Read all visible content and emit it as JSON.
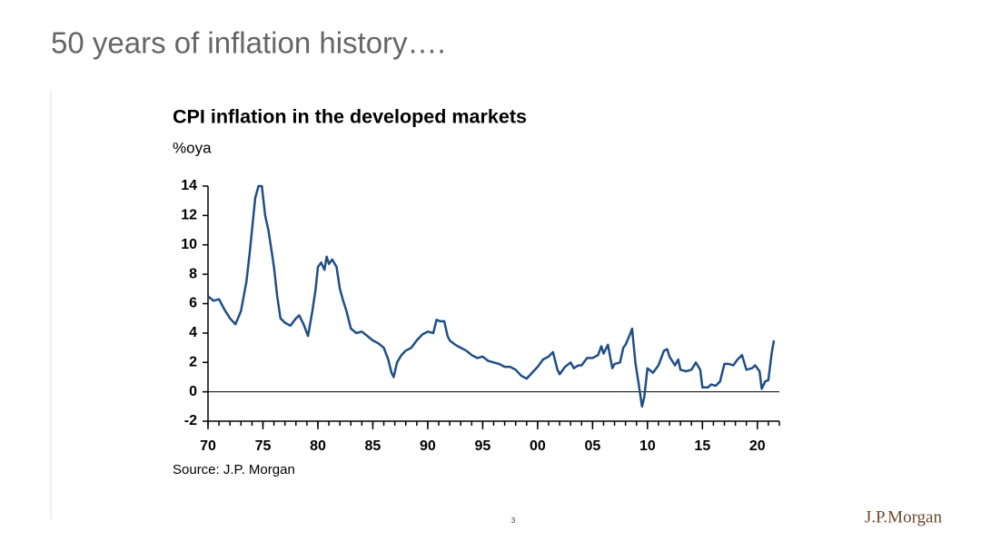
{
  "slide_title": "50 years of inflation history….",
  "page_number": "3",
  "logo": "J.P.Morgan",
  "chart_data": {
    "type": "line",
    "title": "CPI inflation in the developed markets",
    "subtitle": "%oya",
    "source": "Source: J.P. Morgan",
    "color": "#1f4e87",
    "x": [
      1970,
      1970.5,
      1971,
      1971.5,
      1972,
      1972.5,
      1973,
      1973.5,
      1973.8,
      1974,
      1974.3,
      1974.6,
      1974.9,
      1975.2,
      1975.5,
      1975.8,
      1976,
      1976.3,
      1976.6,
      1977,
      1977.5,
      1978,
      1978.3,
      1978.7,
      1979.1,
      1979.5,
      1979.8,
      1980,
      1980.3,
      1980.6,
      1980.8,
      1981,
      1981.3,
      1981.7,
      1982,
      1982.3,
      1982.6,
      1983,
      1983.5,
      1984,
      1984.5,
      1985,
      1985.5,
      1986,
      1986.4,
      1986.7,
      1986.9,
      1987.2,
      1987.6,
      1988,
      1988.5,
      1989,
      1989.5,
      1990,
      1990.5,
      1990.8,
      1991.1,
      1991.5,
      1991.8,
      1992,
      1992.5,
      1993,
      1993.5,
      1994,
      1994.5,
      1995,
      1995.5,
      1996,
      1996.5,
      1997,
      1997.5,
      1998,
      1998.5,
      1999,
      1999.5,
      2000,
      2000.5,
      2001,
      2001.4,
      2001.8,
      2002,
      2002.5,
      2003,
      2003.3,
      2003.7,
      2004,
      2004.5,
      2005,
      2005.5,
      2005.8,
      2006,
      2006.4,
      2006.8,
      2007,
      2007.5,
      2007.8,
      2008,
      2008.4,
      2008.6,
      2008.9,
      2009.2,
      2009.5,
      2009.7,
      2010,
      2010.5,
      2011,
      2011.5,
      2011.8,
      2012,
      2012.5,
      2012.8,
      2013,
      2013.5,
      2014,
      2014.4,
      2014.8,
      2015,
      2015.5,
      2015.8,
      2016.2,
      2016.6,
      2017,
      2017.4,
      2017.8,
      2018.2,
      2018.6,
      2019,
      2019.5,
      2019.8,
      2020.2,
      2020.4,
      2020.7,
      2021,
      2021.3,
      2021.5
    ],
    "values": [
      6.5,
      6.2,
      6.3,
      5.6,
      5.0,
      4.6,
      5.5,
      7.5,
      9.5,
      11,
      13.2,
      14,
      14,
      12,
      11,
      9.5,
      8.5,
      6.5,
      5,
      4.7,
      4.5,
      5,
      5.2,
      4.6,
      3.8,
      5.5,
      7,
      8.5,
      8.8,
      8.3,
      9.2,
      8.7,
      9.0,
      8.5,
      7,
      6.2,
      5.5,
      4.3,
      4.0,
      4.1,
      3.8,
      3.5,
      3.3,
      3.0,
      2.2,
      1.3,
      1.0,
      2.0,
      2.5,
      2.8,
      3.0,
      3.5,
      3.9,
      4.1,
      4.0,
      4.9,
      4.8,
      4.8,
      3.8,
      3.5,
      3.2,
      3.0,
      2.8,
      2.5,
      2.3,
      2.4,
      2.1,
      2.0,
      1.9,
      1.7,
      1.7,
      1.5,
      1.1,
      0.9,
      1.3,
      1.7,
      2.2,
      2.4,
      2.7,
      1.5,
      1.2,
      1.7,
      2.0,
      1.6,
      1.8,
      1.8,
      2.3,
      2.3,
      2.5,
      3.1,
      2.6,
      3.2,
      1.6,
      1.9,
      2.0,
      3.0,
      3.2,
      3.9,
      4.3,
      2.0,
      0.5,
      -1.0,
      -0.4,
      1.6,
      1.3,
      1.8,
      2.8,
      2.9,
      2.4,
      1.8,
      2.2,
      1.5,
      1.4,
      1.5,
      2.0,
      1.5,
      0.3,
      0.3,
      0.5,
      0.4,
      0.7,
      1.9,
      1.9,
      1.8,
      2.2,
      2.5,
      1.5,
      1.6,
      1.8,
      1.4,
      0.2,
      0.7,
      0.8,
      2.6,
      3.5
    ],
    "xlim": [
      1970,
      2022
    ],
    "xticks": [
      {
        "value": 1970,
        "label": "70"
      },
      {
        "value": 1975,
        "label": "75"
      },
      {
        "value": 1980,
        "label": "80"
      },
      {
        "value": 1985,
        "label": "85"
      },
      {
        "value": 1990,
        "label": "90"
      },
      {
        "value": 1995,
        "label": "95"
      },
      {
        "value": 2000,
        "label": "00"
      },
      {
        "value": 2005,
        "label": "05"
      },
      {
        "value": 2010,
        "label": "10"
      },
      {
        "value": 2015,
        "label": "15"
      },
      {
        "value": 2020,
        "label": "20"
      }
    ],
    "ylim": [
      -2,
      14
    ],
    "yticks": [
      -2,
      0,
      2,
      4,
      6,
      8,
      10,
      12,
      14
    ],
    "zero_line": true
  }
}
